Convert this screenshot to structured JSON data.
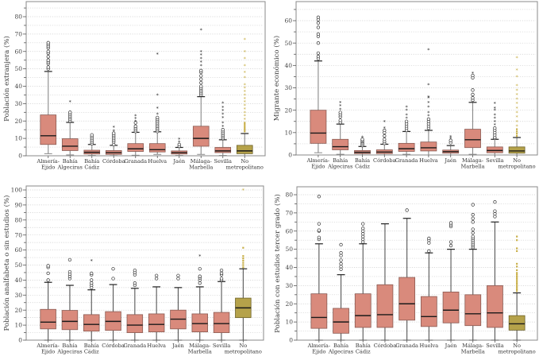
{
  "colors": {
    "box_fill": "#d98a7c",
    "box_stroke": "#8a5a52",
    "nonmetro_fill": "#b5a24a",
    "nonmetro_stroke": "#6d6228",
    "nonmetro_outlier": "#c9b04a",
    "median": "#1a1a1a",
    "grid": "#cfcfcf",
    "frame": "#888888",
    "outlier": "#333333"
  },
  "chart_data": [
    {
      "type": "box",
      "title": "",
      "xlabel": "",
      "ylabel": "Población extranjera (%)",
      "ylim": [
        0,
        88
      ],
      "yticks": [
        0,
        10,
        20,
        30,
        40,
        50,
        60,
        70,
        80
      ],
      "grid": true,
      "whisker_color": "#888888",
      "categories": [
        {
          "label": [
            "Almería-",
            "Ejido"
          ],
          "q1": 6.5,
          "median": 11.5,
          "q3": 23.5,
          "low": 1.2,
          "high": 48.5,
          "outliers": [
            50,
            51,
            53,
            54,
            55,
            57,
            59,
            60,
            62,
            63,
            64,
            65
          ],
          "extremes": [],
          "nonmetro": false
        },
        {
          "label": [
            "Bahía",
            "Algeciras"
          ],
          "q1": 3,
          "median": 5.5,
          "q3": 9.8,
          "low": 0.5,
          "high": 19.2,
          "outliers": [
            20,
            21,
            22,
            23,
            24,
            25
          ],
          "extremes": [
            31
          ],
          "nonmetro": false
        },
        {
          "label": [
            "Bahía",
            "Cádiz"
          ],
          "q1": 1,
          "median": 2,
          "q3": 3.2,
          "low": 0.2,
          "high": 6.5,
          "outliers": [
            7,
            8,
            9,
            10,
            11,
            12
          ],
          "extremes": [],
          "nonmetro": false
        },
        {
          "label": [
            "Córdoba"
          ],
          "q1": 0.8,
          "median": 1.8,
          "q3": 3,
          "low": 0.1,
          "high": 6,
          "outliers": [
            6.5,
            8,
            9,
            10,
            11,
            12,
            13
          ],
          "extremes": [
            14.5,
            16.5
          ],
          "nonmetro": false
        },
        {
          "label": [
            "Granada"
          ],
          "q1": 2.5,
          "median": 4,
          "q3": 7,
          "low": 0.3,
          "high": 13.5,
          "outliers": [
            14,
            15,
            16,
            17,
            19
          ],
          "extremes": [
            20,
            21.5,
            23
          ],
          "nonmetro": false
        },
        {
          "label": [
            "Huelva"
          ],
          "q1": 2.2,
          "median": 3.5,
          "q3": 7,
          "low": 0.8,
          "high": 13.8,
          "outliers": [
            14,
            15,
            16,
            17,
            18,
            19,
            20,
            21,
            22
          ],
          "extremes": [
            24,
            27.5,
            35,
            58.5
          ],
          "nonmetro": false
        },
        {
          "label": [
            "Jaén"
          ],
          "q1": 1,
          "median": 1.8,
          "q3": 2.8,
          "low": 0.2,
          "high": 4.8,
          "outliers": [
            5.5,
            6.5
          ],
          "extremes": [
            8,
            9.5
          ],
          "nonmetro": false
        },
        {
          "label": [
            "Málaga-",
            "Marbella"
          ],
          "q1": 5.5,
          "median": 10,
          "q3": 17,
          "low": 0.8,
          "high": 34,
          "outliers": [
            35,
            36,
            37,
            38,
            39,
            40,
            42,
            44,
            46,
            48,
            49
          ],
          "extremes": [
            52,
            54,
            56,
            58,
            60,
            72.5
          ],
          "nonmetro": false
        },
        {
          "label": [
            "Sevilla"
          ],
          "q1": 1.8,
          "median": 2.8,
          "q3": 4.8,
          "low": 0.2,
          "high": 9.2,
          "outliers": [
            10,
            11,
            12,
            13,
            14,
            15
          ],
          "extremes": [
            17,
            19,
            22,
            24,
            26,
            28,
            30.5
          ],
          "nonmetro": false
        },
        {
          "label": [
            "No",
            "metropolitano"
          ],
          "q1": 1.2,
          "median": 2.8,
          "q3": 6,
          "low": 0,
          "high": 12.8,
          "outliers": [
            14,
            15,
            16,
            17,
            18,
            19
          ],
          "extremes": [
            21,
            23,
            25,
            27,
            29,
            31,
            33,
            35,
            37,
            39,
            41,
            45,
            48,
            52,
            56,
            60,
            67
          ],
          "nonmetro": true
        }
      ]
    },
    {
      "type": "box",
      "title": "",
      "xlabel": "",
      "ylabel": "Migrante económico (%)",
      "ylim": [
        0,
        65
      ],
      "yticks": [
        0,
        10,
        20,
        30,
        40,
        50,
        60
      ],
      "grid": true,
      "whisker_color": "#888888",
      "categories": [
        {
          "label": [
            "Almería-",
            "Ejido"
          ],
          "q1": 5.2,
          "median": 9.8,
          "q3": 20,
          "low": 1,
          "high": 42,
          "outliers": [
            43,
            44,
            45.5,
            50,
            53,
            54,
            57,
            59,
            60.5,
            61.5
          ],
          "extremes": [],
          "nonmetro": false
        },
        {
          "label": [
            "Bahía",
            "Algeciras"
          ],
          "q1": 2.3,
          "median": 3.7,
          "q3": 7,
          "low": 0.3,
          "high": 13.8,
          "outliers": [
            14.5,
            15.5,
            17,
            18,
            19
          ],
          "extremes": [
            20.5,
            22,
            23.5
          ],
          "nonmetro": false
        },
        {
          "label": [
            "Bahía",
            "Cádiz"
          ],
          "q1": 0.6,
          "median": 1.2,
          "q3": 2,
          "low": 0,
          "high": 3.8,
          "outliers": [
            4.2,
            4.8,
            5.5,
            6,
            6.5,
            7
          ],
          "extremes": [
            8
          ],
          "nonmetro": false
        },
        {
          "label": [
            "Córdoba"
          ],
          "q1": 0.6,
          "median": 1.3,
          "q3": 2.3,
          "low": 0,
          "high": 4.8,
          "outliers": [
            5.2,
            6,
            7,
            8.5,
            10,
            11
          ],
          "extremes": [
            12,
            15
          ],
          "nonmetro": false
        },
        {
          "label": [
            "Granada"
          ],
          "q1": 1.6,
          "median": 2.8,
          "q3": 5.2,
          "low": 0.3,
          "high": 10.5,
          "outliers": [
            11,
            12,
            13,
            14,
            15
          ],
          "extremes": [
            16.5,
            18,
            20,
            21.5
          ],
          "nonmetro": false
        },
        {
          "label": [
            "Huelva"
          ],
          "q1": 1.8,
          "median": 3.2,
          "q3": 5.8,
          "low": 0,
          "high": 11,
          "outliers": [
            12,
            13,
            14,
            15,
            16
          ],
          "extremes": [
            17.5,
            19,
            21.5,
            23.5,
            25.5,
            26,
            31.5,
            47
          ],
          "nonmetro": false
        },
        {
          "label": [
            "Jaén"
          ],
          "q1": 0.8,
          "median": 1.5,
          "q3": 2.2,
          "low": 0,
          "high": 4.2,
          "outliers": [
            5.5,
            6.5
          ],
          "extremes": [
            7.5,
            8.2
          ],
          "nonmetro": false
        },
        {
          "label": [
            "Málaga-",
            "Marbella"
          ],
          "q1": 3.3,
          "median": 6.8,
          "q3": 11.5,
          "low": 0.3,
          "high": 23.5,
          "outliers": [
            24.5,
            25.5,
            27,
            29,
            34.5,
            35.5
          ],
          "extremes": [
            36.5
          ],
          "nonmetro": false
        },
        {
          "label": [
            "Sevilla"
          ],
          "q1": 1,
          "median": 2,
          "q3": 3.6,
          "low": 0,
          "high": 7,
          "outliers": [
            7.5,
            8,
            9,
            10,
            11,
            12
          ],
          "extremes": [
            13.5,
            15,
            16.5,
            18,
            20,
            21,
            23
          ],
          "nonmetro": false
        },
        {
          "label": [
            "No",
            "metropolitano"
          ],
          "q1": 0.8,
          "median": 1.8,
          "q3": 3.6,
          "low": 0,
          "high": 7.8,
          "outliers": [
            8.5,
            9.5,
            10.5,
            11.5
          ],
          "extremes": [
            13,
            15,
            17,
            19,
            21,
            23,
            25,
            27,
            29,
            31,
            35,
            38,
            43.5
          ],
          "nonmetro": true
        }
      ]
    },
    {
      "type": "box",
      "title": "",
      "xlabel": "",
      "ylabel": "Población analfabeta o sin estudios (%)",
      "ylim": [
        0,
        103
      ],
      "yticks": [
        0,
        10,
        20,
        30,
        40,
        50,
        60,
        70,
        80,
        90,
        100
      ],
      "grid": true,
      "whisker_color": "#555555",
      "categories": [
        {
          "label": [
            "Almería-",
            "Ejido"
          ],
          "q1": 7.5,
          "median": 12,
          "q3": 20.5,
          "low": 0,
          "high": 38.5,
          "outliers": [
            40,
            44.5,
            48.5,
            49.5
          ],
          "extremes": [],
          "nonmetro": false
        },
        {
          "label": [
            "Bahía",
            "Algeciras"
          ],
          "q1": 7,
          "median": 12.5,
          "q3": 19.8,
          "low": 0,
          "high": 36.5,
          "outliers": [
            41,
            42.5,
            44,
            45.5,
            53.5
          ],
          "extremes": [],
          "nonmetro": false
        },
        {
          "label": [
            "Bahía",
            "Cádiz"
          ],
          "q1": 6,
          "median": 10.5,
          "q3": 17,
          "low": 0,
          "high": 33.5,
          "outliers": [
            35,
            36.5,
            38,
            40,
            43.5,
            44.5
          ],
          "extremes": [
            53
          ],
          "nonmetro": false
        },
        {
          "label": [
            "Córdoba"
          ],
          "q1": 6.5,
          "median": 12.5,
          "q3": 19,
          "low": 0,
          "high": 37,
          "outliers": [
            41,
            47.5
          ],
          "extremes": [],
          "nonmetro": false
        },
        {
          "label": [
            "Granada"
          ],
          "q1": 5,
          "median": 10,
          "q3": 17,
          "low": 0,
          "high": 34.5,
          "outliers": [
            36.5,
            38,
            43.5,
            45,
            46.5
          ],
          "extremes": [],
          "nonmetro": false
        },
        {
          "label": [
            "Huelva"
          ],
          "q1": 5.5,
          "median": 10.5,
          "q3": 17.5,
          "low": 0,
          "high": 35.5,
          "outliers": [
            41,
            43
          ],
          "extremes": [],
          "nonmetro": false
        },
        {
          "label": [
            "Jaén"
          ],
          "q1": 7.5,
          "median": 14,
          "q3": 20,
          "low": 0,
          "high": 35,
          "outliers": [
            41,
            43
          ],
          "extremes": [],
          "nonmetro": false
        },
        {
          "label": [
            "Málaga-",
            "Marbella"
          ],
          "q1": 5.5,
          "median": 11,
          "q3": 17.5,
          "low": 0,
          "high": 35.5,
          "outliers": [
            38,
            40,
            41.5,
            42.5,
            47.5
          ],
          "extremes": [
            56
          ],
          "nonmetro": false
        },
        {
          "label": [
            "Sevilla"
          ],
          "q1": 5,
          "median": 11,
          "q3": 18.5,
          "low": 0,
          "high": 39,
          "outliers": [
            40,
            41,
            43.5,
            44.5,
            46.5
          ],
          "extremes": [],
          "nonmetro": false
        },
        {
          "label": [
            "No",
            "metropolitano"
          ],
          "q1": 15,
          "median": 21.5,
          "q3": 28,
          "low": 0,
          "high": 47.5,
          "outliers": [
            48.5,
            50,
            51.5,
            53,
            54.5,
            56,
            61.5
          ],
          "extremes": [
            100
          ],
          "nonmetro": true
        }
      ]
    },
    {
      "type": "box",
      "title": "",
      "xlabel": "",
      "ylabel": "Población con estudios tercer grado (%)",
      "ylim": [
        0,
        84
      ],
      "yticks": [
        0,
        10,
        20,
        30,
        40,
        50,
        60,
        70,
        80
      ],
      "grid": true,
      "whisker_color": "#555555",
      "categories": [
        {
          "label": [
            "Almería-",
            "Ejido"
          ],
          "q1": 6.5,
          "median": 12.5,
          "q3": 25.5,
          "low": 0,
          "high": 53,
          "outliers": [
            55.5,
            56.5,
            60,
            60.5,
            64,
            79
          ],
          "extremes": [],
          "nonmetro": false
        },
        {
          "label": [
            "Bahía",
            "Algeciras"
          ],
          "q1": 3.8,
          "median": 10,
          "q3": 17.5,
          "low": 0,
          "high": 36,
          "outliers": [
            39,
            40.5,
            42,
            44,
            46.5,
            48,
            52.5
          ],
          "extremes": [],
          "nonmetro": false
        },
        {
          "label": [
            "Bahía",
            "Cádiz"
          ],
          "q1": 7,
          "median": 13.5,
          "q3": 25.5,
          "low": 0,
          "high": 53,
          "outliers": [
            54,
            55.5,
            57,
            58.5,
            60,
            61.5,
            64
          ],
          "extremes": [],
          "nonmetro": false
        },
        {
          "label": [
            "Córdoba"
          ],
          "q1": 7,
          "median": 14,
          "q3": 30.5,
          "low": 0,
          "high": 64,
          "outliers": [],
          "extremes": [],
          "nonmetro": false
        },
        {
          "label": [
            "Granada"
          ],
          "q1": 11,
          "median": 20,
          "q3": 34.5,
          "low": 0,
          "high": 67,
          "outliers": [
            71.5
          ],
          "extremes": [],
          "nonmetro": false
        },
        {
          "label": [
            "Huelva"
          ],
          "q1": 7.5,
          "median": 13,
          "q3": 24,
          "low": 0,
          "high": 48,
          "outliers": [
            49,
            53.5,
            55,
            56
          ],
          "extremes": [],
          "nonmetro": false
        },
        {
          "label": [
            "Jaén"
          ],
          "q1": 9.5,
          "median": 16.5,
          "q3": 26.5,
          "low": 0,
          "high": 50,
          "outliers": [
            52,
            54,
            62.5,
            63.5,
            64.5
          ],
          "extremes": [],
          "nonmetro": false
        },
        {
          "label": [
            "Málaga-",
            "Marbella"
          ],
          "q1": 8,
          "median": 14.5,
          "q3": 25,
          "low": 0,
          "high": 50,
          "outliers": [
            51,
            52,
            53,
            54,
            55,
            56,
            57,
            59,
            61,
            65,
            67,
            69,
            74.5
          ],
          "extremes": [],
          "nonmetro": false
        },
        {
          "label": [
            "Sevilla"
          ],
          "q1": 7,
          "median": 15,
          "q3": 30,
          "low": 0,
          "high": 65,
          "outliers": [
            68,
            69.5,
            71,
            76
          ],
          "extremes": [],
          "nonmetro": false
        },
        {
          "label": [
            "No",
            "metropolitano"
          ],
          "q1": 5.5,
          "median": 9,
          "q3": 13.5,
          "low": 0,
          "high": 26,
          "outliers": [
            27,
            28,
            29,
            30,
            31,
            32,
            33,
            34,
            35,
            36,
            37,
            38.5,
            40.5,
            42,
            49,
            50.5,
            55,
            57
          ],
          "extremes": [],
          "nonmetro": true
        }
      ]
    }
  ]
}
